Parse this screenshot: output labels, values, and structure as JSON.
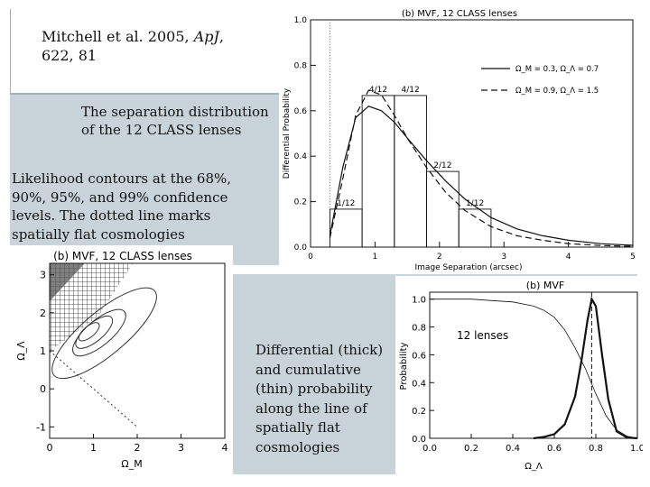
{
  "citation": {
    "line1": "Mitchell et al. 2005, ",
    "journal": "ApJ",
    "line1_tail": ",",
    "line2": "622, 81"
  },
  "captions": {
    "separation": [
      "The separation distribution",
      "of the 12 CLASS lenses"
    ],
    "likelihood": [
      "Likelihood contours at the 68%,",
      "90%, 95%, and 99% confidence",
      "levels. The dotted line marks",
      "spatially flat cosmologies"
    ],
    "probability": [
      "Differential (thick)",
      "and cumulative",
      "(thin) probability",
      "along the line of",
      "spatially flat",
      "cosmologies"
    ]
  },
  "colors": {
    "panel": "#c8d3da",
    "line": "#111111"
  },
  "chart_data": [
    {
      "type": "bar",
      "title": "(b) MVF, 12 CLASS lenses",
      "xlabel": "Image Separation (arcsec)",
      "ylabel": "Differential Probability",
      "xlim": [
        0,
        5
      ],
      "ylim": [
        0,
        1.0
      ],
      "xticks": [
        "0",
        "1",
        "2",
        "3",
        "4",
        "5"
      ],
      "yticks": [
        "0.0",
        "0.2",
        "0.4",
        "0.6",
        "0.8",
        "1.0"
      ],
      "bins": [
        {
          "x0": 0.3,
          "x1": 0.8,
          "value": 0.167,
          "label": "1/12"
        },
        {
          "x0": 0.8,
          "x1": 1.3,
          "value": 0.667,
          "label": "4/12"
        },
        {
          "x0": 1.3,
          "x1": 1.8,
          "value": 0.667,
          "label": "4/12"
        },
        {
          "x0": 1.8,
          "x1": 2.3,
          "value": 0.333,
          "label": "2/12"
        },
        {
          "x0": 2.3,
          "x1": 2.8,
          "value": 0.167,
          "label": "1/12"
        }
      ],
      "legend": [
        "Ω_M = 0.3, Ω_Λ = 0.7",
        "Ω_M = 0.9, Ω_Λ = 1.5"
      ],
      "series": [
        {
          "style": "solid",
          "x": [
            0.3,
            0.5,
            0.7,
            0.9,
            1.1,
            1.3,
            1.5,
            1.8,
            2.1,
            2.4,
            2.8,
            3.2,
            3.6,
            4.0,
            4.5,
            5.0
          ],
          "y": [
            0.05,
            0.35,
            0.57,
            0.62,
            0.6,
            0.55,
            0.48,
            0.38,
            0.29,
            0.21,
            0.13,
            0.08,
            0.05,
            0.03,
            0.015,
            0.008
          ]
        },
        {
          "style": "dashed",
          "x": [
            0.3,
            0.5,
            0.7,
            0.9,
            1.1,
            1.3,
            1.5,
            1.8,
            2.1,
            2.4,
            2.8,
            3.2,
            3.6,
            4.0,
            4.5,
            5.0
          ],
          "y": [
            0.04,
            0.3,
            0.58,
            0.69,
            0.67,
            0.58,
            0.48,
            0.35,
            0.24,
            0.16,
            0.09,
            0.05,
            0.03,
            0.015,
            0.007,
            0.003
          ]
        }
      ]
    },
    {
      "type": "scatter",
      "title": "(b) MVF, 12 CLASS lenses",
      "xlabel": "Ω_M",
      "ylabel": "Ω_Λ",
      "xlim": [
        0,
        4
      ],
      "ylim": [
        -1.3,
        3.3
      ],
      "xticks": [
        "0",
        "1",
        "2",
        "3",
        "4"
      ],
      "yticks": [
        "-1",
        "0",
        "1",
        "2",
        "3"
      ],
      "best_fit": [
        0.9,
        1.5
      ],
      "flat_line": [
        [
          0,
          1
        ],
        [
          2,
          -1
        ]
      ]
    },
    {
      "type": "line",
      "title": "(b) MVF",
      "annotation": "12 lenses",
      "xlabel": "Ω_Λ",
      "ylabel": "Probability",
      "xlim": [
        0,
        1
      ],
      "ylim": [
        0,
        1.05
      ],
      "xticks": [
        "0.0",
        "0.2",
        "0.4",
        "0.6",
        "0.8",
        "1.0"
      ],
      "yticks": [
        "0.0",
        "0.2",
        "0.4",
        "0.6",
        "0.8",
        "1.0"
      ],
      "marker_x": 0.78,
      "series": [
        {
          "style": "thick",
          "x": [
            0.5,
            0.55,
            0.6,
            0.65,
            0.7,
            0.73,
            0.76,
            0.78,
            0.8,
            0.83,
            0.86,
            0.9,
            0.95,
            1.0
          ],
          "y": [
            0,
            0.01,
            0.03,
            0.1,
            0.3,
            0.55,
            0.85,
            1.0,
            0.95,
            0.6,
            0.28,
            0.05,
            0.005,
            0
          ]
        },
        {
          "style": "thin",
          "x": [
            0,
            0.2,
            0.3,
            0.4,
            0.5,
            0.55,
            0.6,
            0.65,
            0.7,
            0.75,
            0.8,
            0.85,
            0.9,
            0.95,
            1.0
          ],
          "y": [
            1.0,
            1.0,
            0.99,
            0.98,
            0.95,
            0.92,
            0.87,
            0.78,
            0.65,
            0.5,
            0.32,
            0.16,
            0.06,
            0.015,
            0
          ]
        }
      ]
    }
  ]
}
